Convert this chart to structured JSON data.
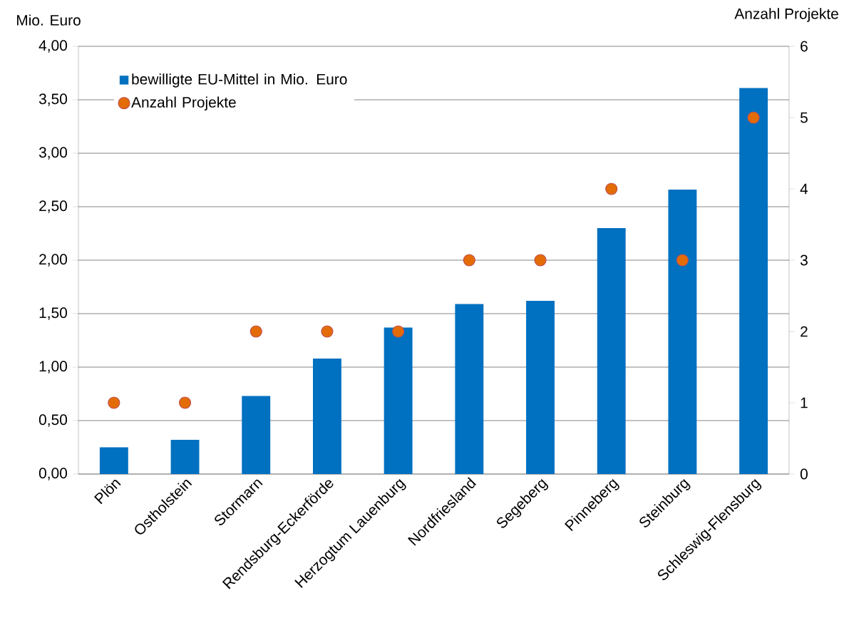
{
  "chart_data": {
    "type": "bar",
    "categories": [
      "Plön",
      "Ostholstein",
      "Stormarn",
      "Rendsburg-Eckerförde",
      "Herzogtum Lauenburg",
      "Nordfriesland",
      "Segeberg",
      "Pinneberg",
      "Steinburg",
      "Schleswig-Flensburg"
    ],
    "series": [
      {
        "name": "bewilligte EU-Mittel in Mio. Euro",
        "color": "#0070c0",
        "values": [
          0.25,
          0.32,
          0.73,
          1.08,
          1.37,
          1.59,
          1.62,
          2.3,
          2.66,
          3.61
        ]
      },
      {
        "name": "Anzahl Projekte",
        "type": "scatter",
        "axis": "y2",
        "marker": "circle",
        "color": "#e36c09",
        "values": [
          1,
          1,
          2,
          2,
          2,
          3,
          3,
          4,
          3,
          5
        ]
      }
    ],
    "ylabel": "Mio. Euro",
    "y2label": "Anzahl Projekte",
    "ylim": [
      0,
      4
    ],
    "yticks": [
      {
        "value": 0,
        "label": "0,00"
      },
      {
        "value": 0.5,
        "label": "0,50"
      },
      {
        "value": 1,
        "label": "1,00"
      },
      {
        "value": 1.5,
        "label": "1,50"
      },
      {
        "value": 2,
        "label": "2,00"
      },
      {
        "value": 2.5,
        "label": "2,50"
      },
      {
        "value": 3,
        "label": "3,00"
      },
      {
        "value": 3.5,
        "label": "3,50"
      },
      {
        "value": 4,
        "label": "4,00"
      }
    ],
    "y2lim": [
      0,
      6
    ],
    "y2ticks": [
      0,
      1,
      2,
      3,
      4,
      5,
      6
    ],
    "grid": "y",
    "legend": "top left"
  }
}
